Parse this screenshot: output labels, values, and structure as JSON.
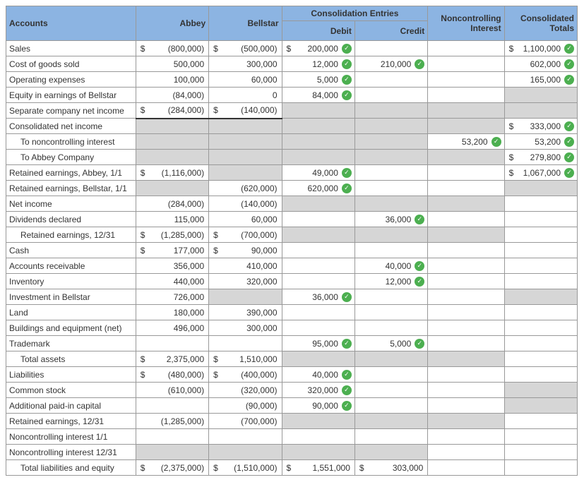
{
  "headers": {
    "consolidation_entries": "Consolidation Entries",
    "accounts": "Accounts",
    "abbey": "Abbey",
    "bellstar": "Bellstar",
    "debit": "Debit",
    "credit": "Credit",
    "nci": "Noncontrolling Interest",
    "totals": "Consolidated Totals"
  },
  "rows": [
    {
      "label": "Sales",
      "abbey": "(800,000)",
      "abbey_d": true,
      "bellstar": "(500,000)",
      "bellstar_d": true,
      "debit": "200,000",
      "debit_d": true,
      "debit_c": true,
      "totals": "1,100,000",
      "totals_d": true,
      "totals_c": true
    },
    {
      "label": "Cost of goods sold",
      "abbey": "500,000",
      "bellstar": "300,000",
      "debit": "12,000",
      "debit_c": true,
      "credit": "210,000",
      "credit_c": true,
      "totals": "602,000",
      "totals_c": true
    },
    {
      "label": "Operating expenses",
      "abbey": "100,000",
      "bellstar": "60,000",
      "debit": "5,000",
      "debit_c": true,
      "totals": "165,000",
      "totals_c": true
    },
    {
      "label": "Equity in earnings of Bellstar",
      "abbey": "(84,000)",
      "bellstar": "0",
      "debit": "84,000",
      "debit_c": true,
      "totals_shade": true
    },
    {
      "label": "Separate company net income",
      "abbey": "(284,000)",
      "abbey_d": true,
      "abbey_ul": true,
      "bellstar": "(140,000)",
      "bellstar_d": true,
      "bellstar_ul": true,
      "debit_shade": true,
      "credit_shade": true,
      "nci_shade": true,
      "totals_shade": true
    },
    {
      "label": "Consolidated net income",
      "abbey_shade": true,
      "bellstar_shade": true,
      "debit_shade": true,
      "credit_shade": true,
      "nci_shade": true,
      "totals": "333,000",
      "totals_d": true,
      "totals_c": true
    },
    {
      "label": "To noncontrolling interest",
      "indent": true,
      "abbey_shade": true,
      "bellstar_shade": true,
      "debit_shade": true,
      "credit_shade": true,
      "nci": "53,200",
      "nci_c": true,
      "totals": "53,200",
      "totals_c": true
    },
    {
      "label": "To Abbey Company",
      "indent": true,
      "abbey_shade": true,
      "bellstar_shade": true,
      "debit_shade": true,
      "credit_shade": true,
      "nci_shade": true,
      "totals": "279,800",
      "totals_d": true,
      "totals_c": true
    },
    {
      "label": "Retained earnings, Abbey, 1/1",
      "abbey": "(1,116,000)",
      "abbey_d": true,
      "bellstar_shade": true,
      "debit": "49,000",
      "debit_c": true,
      "totals": "1,067,000",
      "totals_d": true,
      "totals_c": true
    },
    {
      "label": "Retained earnings, Bellstar, 1/1",
      "abbey_shade": true,
      "bellstar": "(620,000)",
      "debit": "620,000",
      "debit_c": true,
      "totals_shade": true
    },
    {
      "label": "Net income",
      "abbey": "(284,000)",
      "bellstar": "(140,000)",
      "debit_shade": true,
      "credit_shade": true,
      "nci_shade": true
    },
    {
      "label": "Dividends declared",
      "abbey": "115,000",
      "bellstar": "60,000",
      "credit": "36,000",
      "credit_c": true
    },
    {
      "label": "Retained earnings, 12/31",
      "indent": true,
      "abbey": "(1,285,000)",
      "abbey_d": true,
      "bellstar": "(700,000)",
      "bellstar_d": true,
      "debit_shade": true,
      "credit_shade": true,
      "nci_shade": true
    },
    {
      "label": "Cash",
      "abbey": "177,000",
      "abbey_d": true,
      "bellstar": "90,000",
      "bellstar_d": true
    },
    {
      "label": "Accounts receivable",
      "abbey": "356,000",
      "bellstar": "410,000",
      "credit": "40,000",
      "credit_c": true
    },
    {
      "label": "Inventory",
      "abbey": "440,000",
      "bellstar": "320,000",
      "credit": "12,000",
      "credit_c": true
    },
    {
      "label": "Investment in Bellstar",
      "abbey": "726,000",
      "bellstar_shade": true,
      "debit": "36,000",
      "debit_c": true,
      "totals_shade": true
    },
    {
      "label": "Land",
      "abbey": "180,000",
      "bellstar": "390,000"
    },
    {
      "label": "Buildings and equipment (net)",
      "abbey": "496,000",
      "bellstar": "300,000"
    },
    {
      "label": "Trademark",
      "debit": "95,000",
      "debit_c": true,
      "credit": "5,000",
      "credit_c": true
    },
    {
      "label": "Total assets",
      "indent": true,
      "abbey": "2,375,000",
      "abbey_d": true,
      "bellstar": "1,510,000",
      "bellstar_d": true,
      "debit_shade": true,
      "credit_shade": true,
      "nci_shade": true
    },
    {
      "label": "Liabilities",
      "abbey": "(480,000)",
      "abbey_d": true,
      "bellstar": "(400,000)",
      "bellstar_d": true,
      "debit": "40,000",
      "debit_c": true
    },
    {
      "label": "Common stock",
      "abbey": "(610,000)",
      "bellstar": "(320,000)",
      "debit": "320,000",
      "debit_c": true,
      "totals_shade": true
    },
    {
      "label": "Additional paid-in capital",
      "bellstar": "(90,000)",
      "debit": "90,000",
      "debit_c": true,
      "totals_shade": true
    },
    {
      "label": "Retained earnings, 12/31",
      "abbey": "(1,285,000)",
      "bellstar": "(700,000)",
      "debit_shade": true,
      "credit_shade": true,
      "nci_shade": true
    },
    {
      "label": "Noncontrolling interest 1/1"
    },
    {
      "label": "Noncontrolling interest 12/31",
      "abbey_shade": true,
      "bellstar_shade": true,
      "debit_shade": true,
      "credit_shade": true
    },
    {
      "label": "Total liabilities and equity",
      "indent": true,
      "abbey": "(2,375,000)",
      "abbey_d": true,
      "bellstar": "(1,510,000)",
      "bellstar_d": true,
      "debit": "1,551,000",
      "debit_d": true,
      "credit": "303,000",
      "credit_d": true
    }
  ]
}
